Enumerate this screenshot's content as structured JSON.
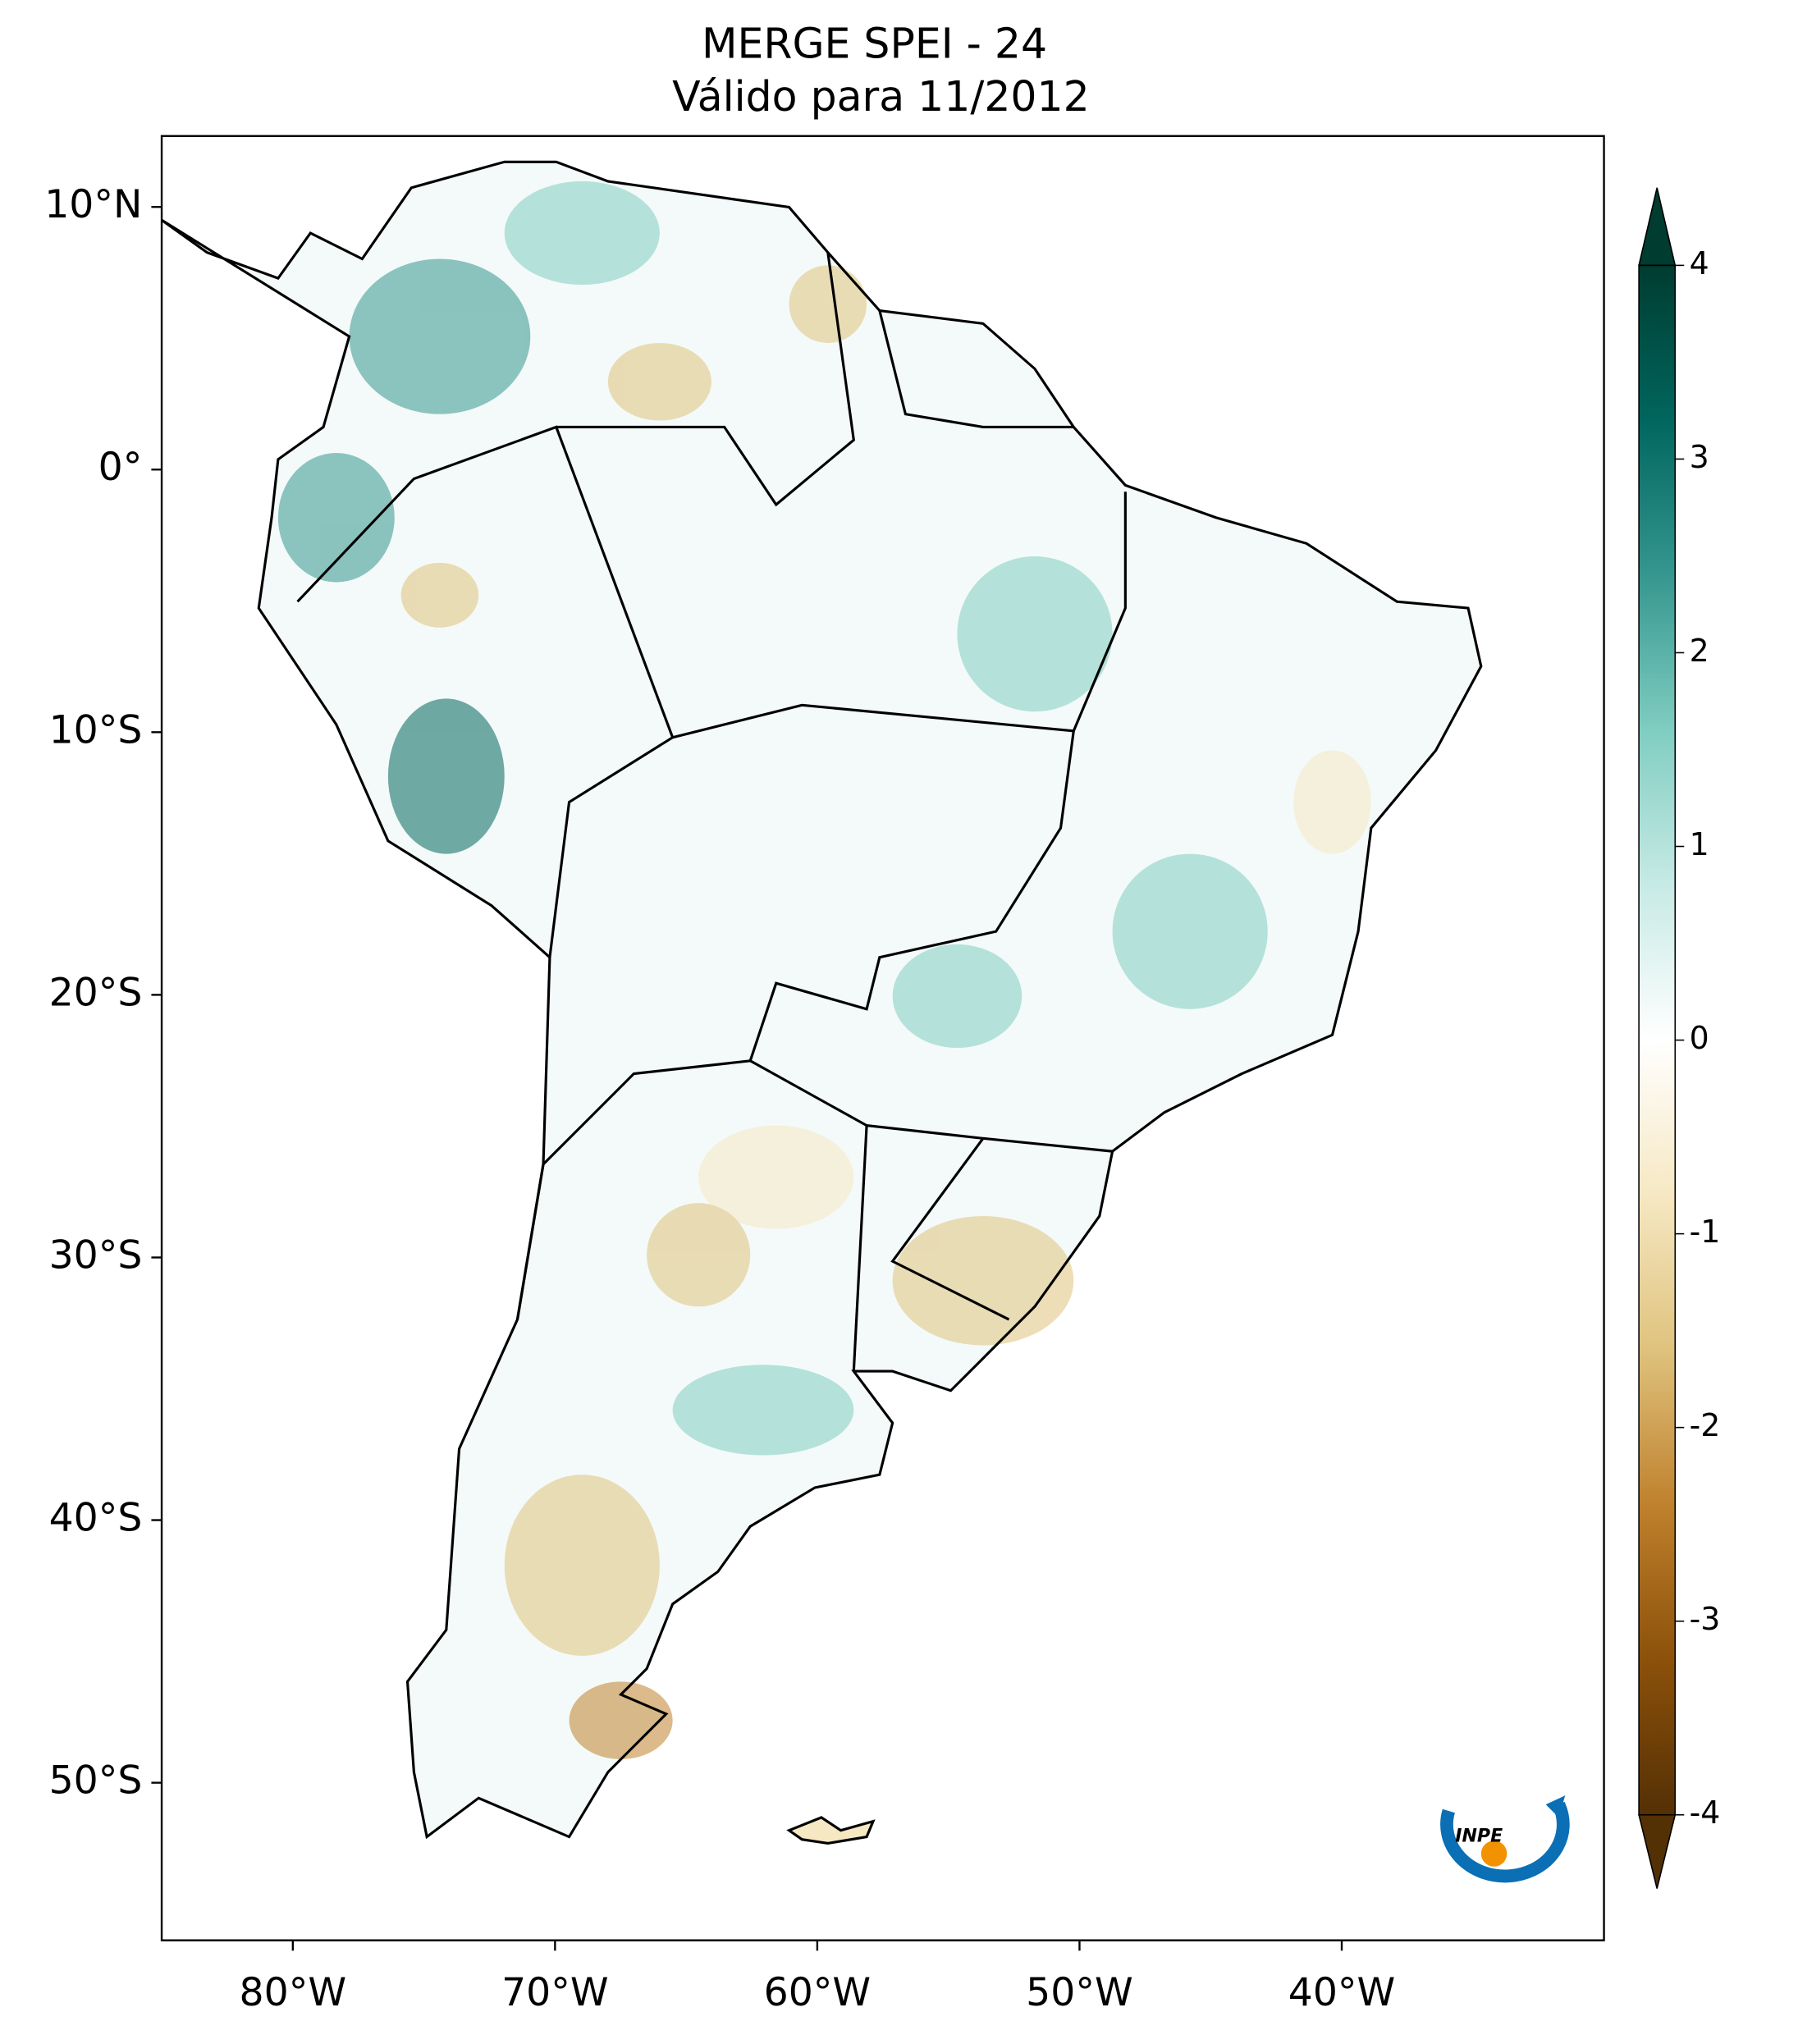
{
  "map": {
    "title": "MERGE   SPEI - 24",
    "subtitle": "Válido para 11/2012",
    "xlim": [
      -85,
      -30
    ],
    "ylim": [
      -56,
      12.7
    ],
    "xticks": [
      {
        "value": -80,
        "label": "80°W"
      },
      {
        "value": -70,
        "label": "70°W"
      },
      {
        "value": -60,
        "label": "60°W"
      },
      {
        "value": -50,
        "label": "50°W"
      },
      {
        "value": -40,
        "label": "40°W"
      }
    ],
    "yticks": [
      {
        "value": 10,
        "label": "10°N"
      },
      {
        "value": 0,
        "label": "0°"
      },
      {
        "value": -10,
        "label": "10°S"
      },
      {
        "value": -20,
        "label": "20°S"
      },
      {
        "value": -30,
        "label": "30°S"
      },
      {
        "value": -40,
        "label": "40°S"
      },
      {
        "value": -50,
        "label": "50°S"
      }
    ],
    "colorbar": {
      "lim": [
        -4,
        4
      ],
      "ticks": [
        4,
        3,
        2,
        1,
        0,
        -1,
        -2,
        -3,
        -4
      ],
      "colors": [
        "#543005",
        "#8c510a",
        "#bf812d",
        "#dfc27d",
        "#f6e8c3",
        "#ffffff",
        "#c7eae5",
        "#80cdc1",
        "#35978f",
        "#01665e",
        "#003c30"
      ]
    },
    "logo": "INPE"
  }
}
